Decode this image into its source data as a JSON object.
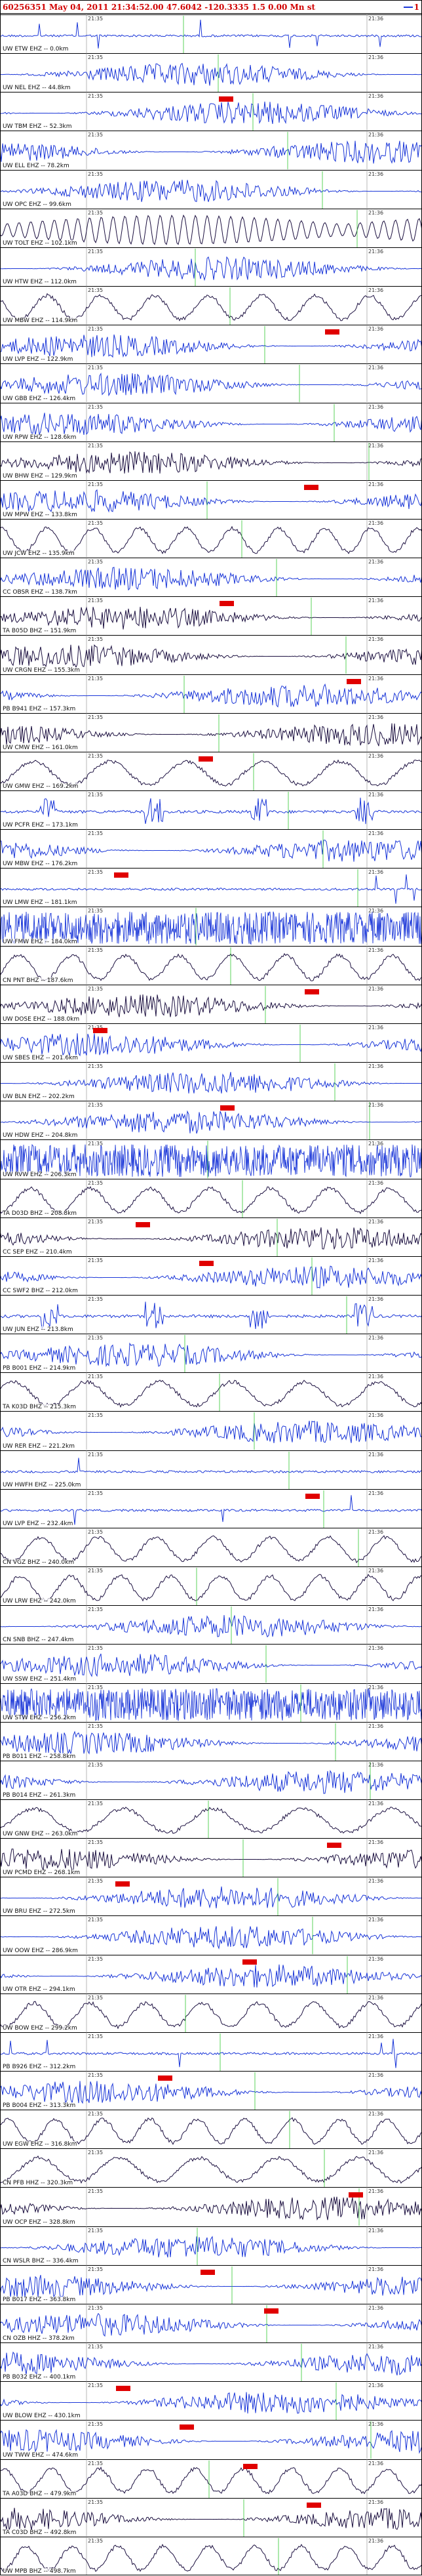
{
  "header": {
    "title": "60256351 May 04, 2011 21:34:52.00   47.6042 -120.3335   1.5 0.00 Mn st",
    "suffix": "1"
  },
  "colors": {
    "trace_blue": "#1a36d8",
    "trace_dark": "#1c1040",
    "pick": "#e00000",
    "grid": "#32c832",
    "title": "#d00000"
  },
  "time_labels": [
    "21:35",
    "21:36"
  ],
  "stations": [
    {
      "label": "UW ETW EHZ -- 0.0km",
      "style": "spike",
      "color": "blue"
    },
    {
      "label": "UW NEL EHZ -- 44.8km",
      "style": "noise",
      "color": "blue"
    },
    {
      "label": "UW TBM EHZ -- 52.3km",
      "style": "noise",
      "color": "blue",
      "pick": true
    },
    {
      "label": "UW ELL EHZ -- 78.2km",
      "style": "noise",
      "color": "blue"
    },
    {
      "label": "UW OPC EHZ -- 99.6km",
      "style": "noise",
      "color": "blue"
    },
    {
      "label": "UW TOLT EHZ -- 102.1km",
      "style": "osc",
      "color": "dark"
    },
    {
      "label": "UW HTW EHZ -- 112.0km",
      "style": "noise",
      "color": "blue"
    },
    {
      "label": "UW MBW EHZ -- 114.9km",
      "style": "wave",
      "color": "dark"
    },
    {
      "label": "UW LVP EHZ -- 122.9km",
      "style": "noise",
      "color": "blue",
      "pick": true
    },
    {
      "label": "UW GBB EHZ -- 126.4km",
      "style": "noise",
      "color": "blue"
    },
    {
      "label": "UW RPW EHZ -- 128.6km",
      "style": "noise",
      "color": "blue"
    },
    {
      "label": "UW BHW EHZ -- 129.9km",
      "style": "noise",
      "color": "dark"
    },
    {
      "label": "UW MPW EHZ -- 133.8km",
      "style": "noise",
      "color": "blue",
      "pick": true
    },
    {
      "label": "UW JCW EHZ -- 135.9km",
      "style": "wave",
      "color": "dark"
    },
    {
      "label": "CC OBSR EHZ -- 138.7km",
      "style": "noise",
      "color": "blue"
    },
    {
      "label": "TA B05D BHZ -- 151.9km",
      "style": "noise",
      "color": "dark",
      "pick": true
    },
    {
      "label": "UW CRGN EHZ -- 155.3km",
      "style": "noise",
      "color": "dark"
    },
    {
      "label": "PB B941 EHZ -- 157.3km",
      "style": "noise",
      "color": "blue",
      "pick": true
    },
    {
      "label": "UW CMW EHZ -- 161.0km",
      "style": "noise",
      "color": "dark"
    },
    {
      "label": "UW GMW EHZ -- 169.2km",
      "style": "wave",
      "color": "dark",
      "pick": true
    },
    {
      "label": "UW PCFR EHZ -- 173.1km",
      "style": "burst",
      "color": "blue"
    },
    {
      "label": "UW MBW EHZ -- 176.2km",
      "style": "noise",
      "color": "blue"
    },
    {
      "label": "UW LMW EHZ -- 181.1km",
      "style": "spike",
      "color": "blue",
      "pick": true
    },
    {
      "label": "UW FMW EHZ -- 184.0km",
      "style": "dense",
      "color": "blue"
    },
    {
      "label": "CN PNT BHZ -- 187.6km",
      "style": "wave",
      "color": "dark"
    },
    {
      "label": "UW DOSE EHZ -- 188.0km",
      "style": "noise",
      "color": "dark",
      "pick": true
    },
    {
      "label": "UW SBES EHZ -- 201.6km",
      "style": "noise",
      "color": "blue",
      "pick": true
    },
    {
      "label": "UW BLN EHZ -- 202.2km",
      "style": "noise",
      "color": "blue"
    },
    {
      "label": "UW HDW EHZ -- 204.8km",
      "style": "noise",
      "color": "blue",
      "pick": true
    },
    {
      "label": "UW RVW EHZ -- 206.3km",
      "style": "dense",
      "color": "blue"
    },
    {
      "label": "TA D03D BHZ -- 208.8km",
      "style": "wave",
      "color": "dark"
    },
    {
      "label": "CC SEP EHZ -- 210.4km",
      "style": "noise",
      "color": "dark",
      "pick": true
    },
    {
      "label": "CC SWF2 BHZ -- 212.0km",
      "style": "noise",
      "color": "blue",
      "pick": true
    },
    {
      "label": "UW JUN EHZ -- 213.8km",
      "style": "burst",
      "color": "blue"
    },
    {
      "label": "PB B001 EHZ -- 214.9km",
      "style": "noise",
      "color": "blue"
    },
    {
      "label": "TA K03D BHZ -- 215.3km",
      "style": "wave",
      "color": "dark"
    },
    {
      "label": "UW RER EHZ -- 221.2km",
      "style": "noise",
      "color": "blue"
    },
    {
      "label": "UW HWFH EHZ -- 225.0km",
      "style": "spike",
      "color": "blue"
    },
    {
      "label": "UW LVP EHZ -- 232.4km",
      "style": "spike",
      "color": "blue",
      "pick": true
    },
    {
      "label": "CN VGZ BHZ -- 240.0km",
      "style": "wave",
      "color": "dark"
    },
    {
      "label": "UW LRW EHZ -- 242.0km",
      "style": "wave",
      "color": "dark"
    },
    {
      "label": "CN SNB BHZ -- 247.4km",
      "style": "noise",
      "color": "blue"
    },
    {
      "label": "UW SSW EHZ -- 251.4km",
      "style": "noise",
      "color": "blue"
    },
    {
      "label": "UW STW EHZ -- 256.2km",
      "style": "dense",
      "color": "blue"
    },
    {
      "label": "PB B011 EHZ -- 258.8km",
      "style": "noise",
      "color": "blue"
    },
    {
      "label": "PB B014 EHZ -- 261.3km",
      "style": "noise",
      "color": "blue"
    },
    {
      "label": "UW GNW EHZ -- 263.0km",
      "style": "wave",
      "color": "dark"
    },
    {
      "label": "UW PCMD EHZ -- 268.1km",
      "style": "noise",
      "color": "dark",
      "pick": true
    },
    {
      "label": "UW BRU EHZ -- 272.5km",
      "style": "noise",
      "color": "blue",
      "pick": true
    },
    {
      "label": "UW OOW EHZ -- 286.9km",
      "style": "noise",
      "color": "blue"
    },
    {
      "label": "UW OTR EHZ -- 294.1km",
      "style": "noise",
      "color": "blue",
      "pick": true
    },
    {
      "label": "UW BOW EHZ -- 299.2km",
      "style": "wave",
      "color": "dark"
    },
    {
      "label": "PB B926 EHZ -- 312.2km",
      "style": "spike",
      "color": "blue"
    },
    {
      "label": "PB B004 EHZ -- 313.3km",
      "style": "noise",
      "color": "blue",
      "pick": true
    },
    {
      "label": "UW EGW EHZ -- 316.8km",
      "style": "wave",
      "color": "dark"
    },
    {
      "label": "CN PFB HHZ -- 320.3km",
      "style": "wave",
      "color": "dark"
    },
    {
      "label": "UW OCP EHZ -- 328.8km",
      "style": "noise",
      "color": "dark",
      "pick": true
    },
    {
      "label": "CN WSLR BHZ -- 336.4km",
      "style": "noise",
      "color": "blue"
    },
    {
      "label": "PB B017 EHZ -- 363.8km",
      "style": "noise",
      "color": "blue",
      "pick": true
    },
    {
      "label": "CN OZB HHZ -- 378.2km",
      "style": "noise",
      "color": "blue",
      "pick": true
    },
    {
      "label": "PB B032 EHZ -- 400.1km",
      "style": "noise",
      "color": "blue"
    },
    {
      "label": "UW BLOW EHZ -- 430.1km",
      "style": "noise",
      "color": "blue",
      "pick": true
    },
    {
      "label": "UW TWW EHZ -- 474.6km",
      "style": "noise",
      "color": "blue",
      "pick": true
    },
    {
      "label": "TA A03D BHZ -- 479.9km",
      "style": "wave",
      "color": "dark",
      "pick": true
    },
    {
      "label": "TA C03D BHZ -- 492.8km",
      "style": "noise",
      "color": "dark",
      "pick": true
    },
    {
      "label": "UW MPB BHZ -- 498.7km",
      "style": "wave",
      "color": "dark"
    }
  ]
}
